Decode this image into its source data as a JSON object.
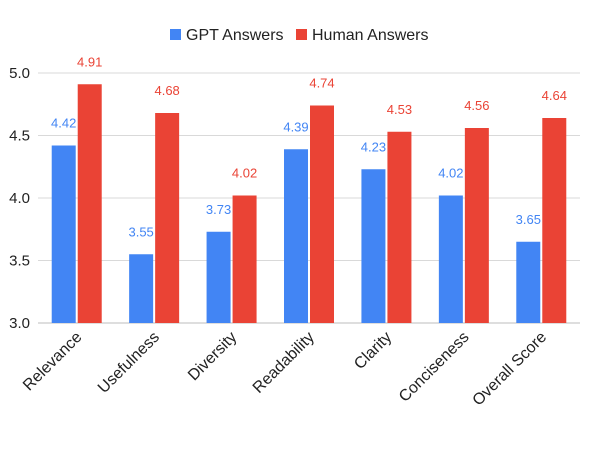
{
  "chart_data": {
    "type": "bar",
    "title": "",
    "xlabel": "",
    "ylabel": "",
    "categories": [
      "Relevance",
      "Usefulness",
      "Diversity",
      "Readability",
      "Clarity",
      "Conciseness",
      "Overall Score"
    ],
    "series": [
      {
        "name": "GPT Answers",
        "color": "#4285F4",
        "values": [
          4.42,
          3.55,
          3.73,
          4.39,
          4.23,
          4.02,
          3.65
        ],
        "labels": [
          "4.42",
          "3.55",
          "3.73",
          "4.39",
          "4.23",
          "4.02",
          "3.65"
        ]
      },
      {
        "name": "Human Answers",
        "color": "#EA4335",
        "values": [
          4.91,
          4.68,
          4.02,
          4.74,
          4.53,
          4.56,
          4.64
        ],
        "labels": [
          "4.91",
          "4.68",
          "4.02",
          "4.74",
          "4.53",
          "4.56",
          "4.64"
        ]
      }
    ],
    "ylim": [
      3.0,
      5.0
    ],
    "yticks": [
      3.0,
      3.5,
      4.0,
      4.5,
      5.0
    ],
    "ytick_labels": [
      "3.0",
      "3.5",
      "4.0",
      "4.5",
      "5.0"
    ],
    "grid": true,
    "legend_position": "top-center",
    "tick_label_color": "#222222",
    "grid_color": "#d9d9d9"
  }
}
